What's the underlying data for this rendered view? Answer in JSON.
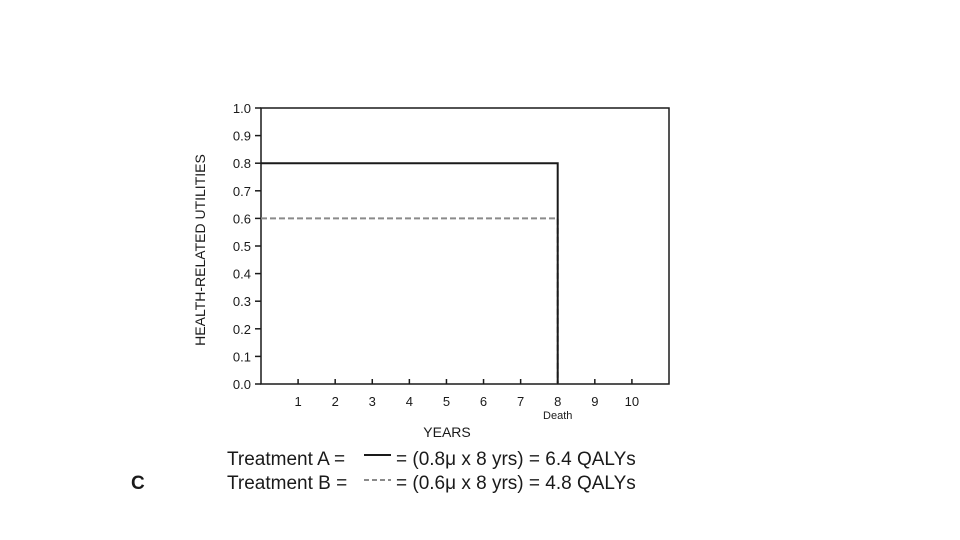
{
  "panel_label": "C",
  "chart_data": {
    "type": "line",
    "xlabel": "YEARS",
    "ylabel": "HEALTH-RELATED UTILITIES",
    "xlim": [
      0,
      11
    ],
    "ylim": [
      0,
      1.0
    ],
    "x_ticks": [
      1,
      2,
      3,
      4,
      5,
      6,
      7,
      8,
      9,
      10
    ],
    "y_ticks": [
      "0.0",
      "0.1",
      "0.2",
      "0.3",
      "0.4",
      "0.5",
      "0.6",
      "0.7",
      "0.8",
      "0.9",
      "1.0"
    ],
    "grid": false,
    "annotations": [
      {
        "text": "Death",
        "x": 8
      }
    ],
    "series": [
      {
        "id": "treatment-a",
        "color": "#1a1a1a",
        "style": "solid",
        "points": [
          [
            0,
            0.8
          ],
          [
            8,
            0.8
          ],
          [
            8,
            0.0
          ]
        ]
      },
      {
        "id": "treatment-b",
        "color": "#8a8a8a",
        "style": "dashed",
        "points": [
          [
            0,
            0.6
          ],
          [
            8,
            0.6
          ],
          [
            8,
            0.0
          ]
        ]
      }
    ]
  },
  "legend": [
    {
      "series_id": "treatment-a",
      "label": "Treatment A =",
      "formula": "= (0.8μ x 8 yrs) = 6.4 QALYs"
    },
    {
      "series_id": "treatment-b",
      "label": "Treatment B =",
      "formula": "= (0.6μ x 8 yrs) = 4.8 QALYs"
    }
  ]
}
